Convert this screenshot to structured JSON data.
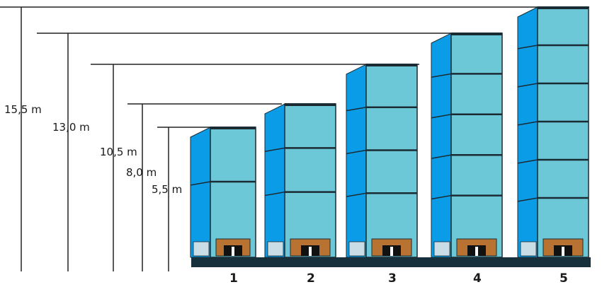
{
  "diagram": {
    "units": [
      {
        "number": "1",
        "height_label": "5,5 m",
        "height_m": 5.5,
        "levels": 2
      },
      {
        "number": "2",
        "height_label": "8,0 m",
        "height_m": 8.0,
        "levels": 3
      },
      {
        "number": "3",
        "height_label": "10,5 m",
        "height_m": 10.5,
        "levels": 4
      },
      {
        "number": "4",
        "height_label": "13,0 m",
        "height_m": 13.0,
        "levels": 5
      },
      {
        "number": "5",
        "height_label": "15,5 m",
        "height_m": 15.5,
        "levels": 6
      }
    ],
    "colors": {
      "front": "#6cc8d6",
      "side": "#0a9ce6",
      "frame": "#1b2b33",
      "pallet": "#b87333",
      "base": "#16313c",
      "dimension_line": "#222222"
    }
  }
}
